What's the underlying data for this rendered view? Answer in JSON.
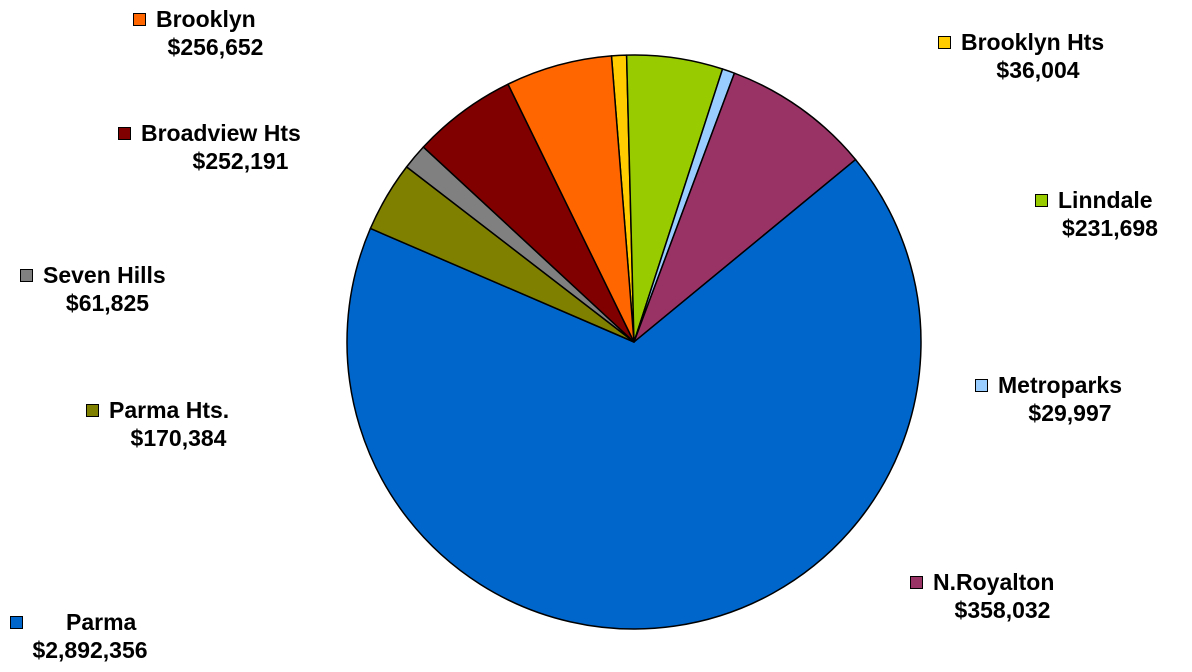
{
  "chart_data": {
    "type": "pie",
    "title": "",
    "slices": [
      {
        "name": "Brooklyn Hts",
        "value": 36004,
        "label": "$36,004",
        "color": "#ffcc00"
      },
      {
        "name": "Linndale",
        "value": 231698,
        "label": "$231,698",
        "color": "#99cc00"
      },
      {
        "name": "Metroparks",
        "value": 29997,
        "label": "$29,997",
        "color": "#99ccff"
      },
      {
        "name": "N.Royalton",
        "value": 358032,
        "label": "$358,032",
        "color": "#993366"
      },
      {
        "name": "Parma",
        "value": 2892356,
        "label": "$2,892,356",
        "color": "#0066cc"
      },
      {
        "name": "Parma Hts.",
        "value": 170384,
        "label": "$170,384",
        "color": "#808000"
      },
      {
        "name": "Seven Hills",
        "value": 61825,
        "label": "$61,825",
        "color": "#808080"
      },
      {
        "name": "Broadview Hts",
        "value": 252191,
        "label": "$252,191",
        "color": "#800000"
      },
      {
        "name": "Brooklyn",
        "value": 256652,
        "label": "$256,652",
        "color": "#ff6600"
      }
    ],
    "start_angle_deg": -94.5,
    "direction": "clockwise",
    "legend": "labels-around-pie"
  }
}
